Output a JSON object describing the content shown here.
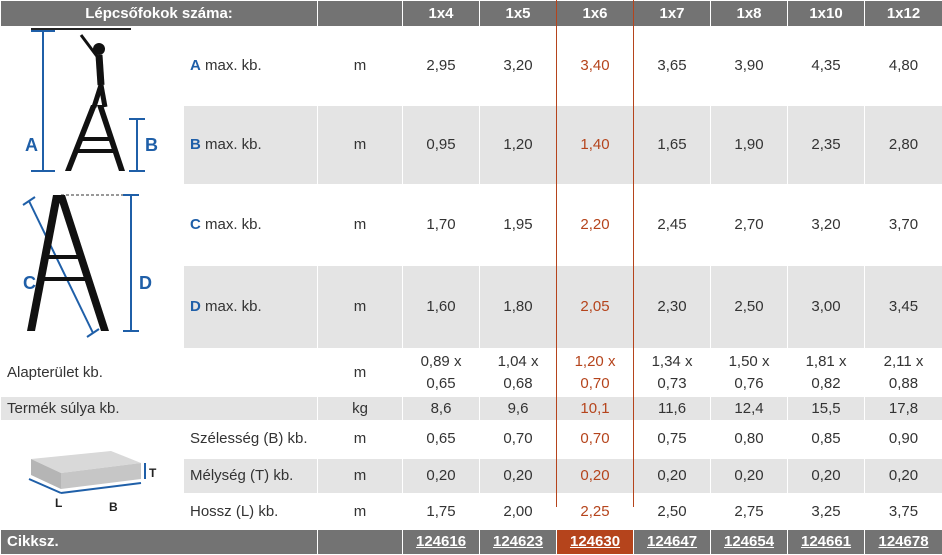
{
  "header": {
    "label": "Lépcsőfokok száma:",
    "sizes": [
      "1x4",
      "1x5",
      "1x6",
      "1x7",
      "1x8",
      "1x10",
      "1x12"
    ]
  },
  "rows": {
    "A": {
      "letter": "A",
      "label": " max. kb.",
      "unit": "m",
      "values": [
        "2,95",
        "3,20",
        "3,40",
        "3,65",
        "3,90",
        "4,35",
        "4,80"
      ]
    },
    "B": {
      "letter": "B",
      "label": " max. kb.",
      "unit": "m",
      "values": [
        "0,95",
        "1,20",
        "1,40",
        "1,65",
        "1,90",
        "2,35",
        "2,80"
      ]
    },
    "C": {
      "letter": "C",
      "label": " max. kb.",
      "unit": "m",
      "values": [
        "1,70",
        "1,95",
        "2,20",
        "2,45",
        "2,70",
        "3,20",
        "3,70"
      ]
    },
    "D": {
      "letter": "D",
      "label": " max. kb.",
      "unit": "m",
      "values": [
        "1,60",
        "1,80",
        "2,05",
        "2,30",
        "2,50",
        "3,00",
        "3,45"
      ]
    }
  },
  "footprint": {
    "label": "Alapterület kb.",
    "unit": "m",
    "values_a": [
      "0,89 x",
      "1,04 x",
      "1,20 x",
      "1,34 x",
      "1,50 x",
      "1,81 x",
      "2,11 x"
    ],
    "values_b": [
      "0,65",
      "0,68",
      "0,70",
      "0,73",
      "0,76",
      "0,82",
      "0,88"
    ]
  },
  "weight": {
    "label": "Termék súlya kb.",
    "unit": "kg",
    "values": [
      "8,6",
      "9,6",
      "10,1",
      "11,6",
      "12,4",
      "15,5",
      "17,8"
    ]
  },
  "width": {
    "label": "Szélesség (B) kb.",
    "unit": "m",
    "values": [
      "0,65",
      "0,70",
      "0,70",
      "0,75",
      "0,80",
      "0,85",
      "0,90"
    ]
  },
  "depth": {
    "label": "Mélység (T) kb.",
    "unit": "m",
    "values": [
      "0,20",
      "0,20",
      "0,20",
      "0,20",
      "0,20",
      "0,20",
      "0,20"
    ]
  },
  "length": {
    "label": "Hossz (L) kb.",
    "unit": "m",
    "values": [
      "1,75",
      "2,00",
      "2,25",
      "2,50",
      "2,75",
      "3,25",
      "3,75"
    ]
  },
  "footer": {
    "label": "Cikksz.",
    "codes": [
      "124616",
      "124623",
      "124630",
      "124647",
      "124654",
      "124661",
      "124678"
    ]
  },
  "diagram_labels": {
    "a": "A",
    "b": "B",
    "c": "C",
    "d": "D",
    "t": "T",
    "l": "L",
    "bb": "B"
  },
  "colors": {
    "header_bg": "#737373",
    "row_alt_bg": "#e4e4e4",
    "highlight": "#b5441c",
    "letter_blue": "#1f5fa8"
  },
  "highlight_column": "1x6"
}
